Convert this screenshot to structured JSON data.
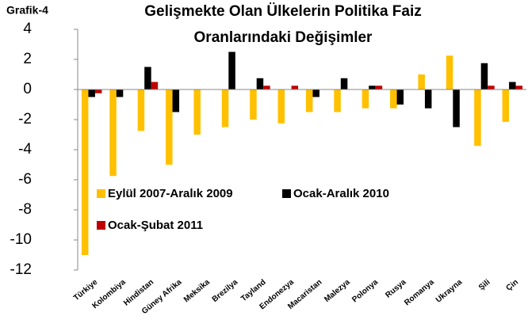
{
  "chart_data": {
    "type": "bar",
    "label": "Grafik-4",
    "title": [
      "Gelişmekte Olan Ülkelerin Politika Faiz",
      "Oranlarındaki Değişimler"
    ],
    "categories": [
      "Türkiye",
      "Kolombiya",
      "Hindistan",
      "Güney Afrika",
      "Meksika",
      "Brezilya",
      "Tayland",
      "Endonezya",
      "Macaristan",
      "Malezya",
      "Polonya",
      "Rusya",
      "Romanya",
      "Ukrayna",
      "Şili",
      "Çin"
    ],
    "series": [
      {
        "name": "Eylül 2007-Aralık 2009",
        "color": "#FFC000",
        "values": [
          -11,
          -5.75,
          -2.75,
          -5,
          -3,
          -2.5,
          -2,
          -2.25,
          -1.5,
          -1.5,
          -1.25,
          -1.25,
          1,
          2.25,
          -3.75,
          -2.15
        ]
      },
      {
        "name": "Ocak-Aralık 2010",
        "color": "#000000",
        "values": [
          -0.5,
          -0.5,
          1.5,
          -1.5,
          0,
          2.5,
          0.75,
          0,
          -0.5,
          0.75,
          0.25,
          -1,
          -1.25,
          -2.5,
          1.75,
          0.5
        ]
      },
      {
        "name": "Ocak-Şubat 2011",
        "color": "#C00000",
        "values": [
          -0.25,
          0,
          0.5,
          0,
          0,
          0,
          0.25,
          0.25,
          0,
          0,
          0.25,
          0,
          0,
          0,
          0.25,
          0.25
        ]
      }
    ],
    "ylim": [
      -12,
      4
    ],
    "yticks": [
      -12,
      -10,
      -8,
      -6,
      -4,
      -2,
      0,
      2,
      4
    ]
  }
}
